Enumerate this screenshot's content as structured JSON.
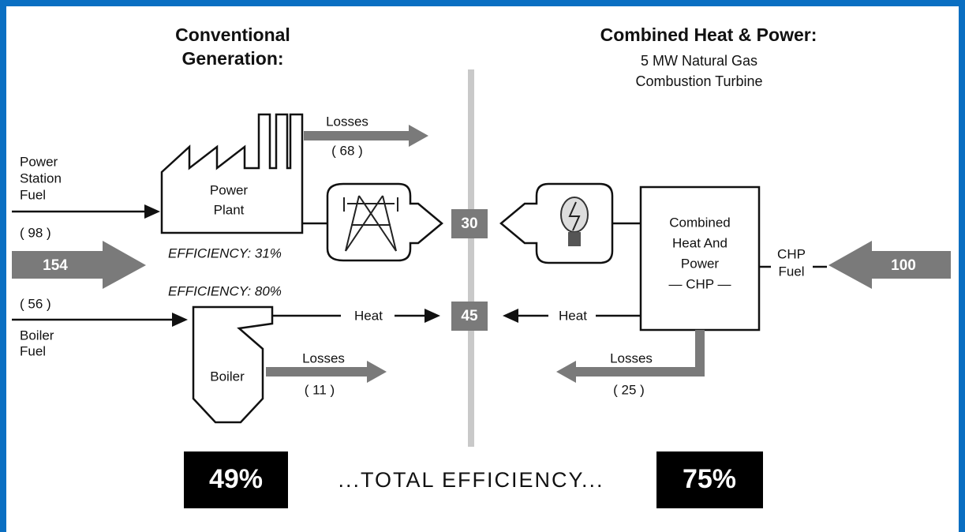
{
  "left_header": {
    "line1": "Conventional",
    "line2": "Generation:"
  },
  "right_header": {
    "title": "Combined Heat & Power:",
    "subtitle": [
      "5 MW Natural Gas",
      "Combustion Turbine"
    ]
  },
  "conventional": {
    "fuel_label": [
      "Power",
      "Station",
      "Fuel"
    ],
    "fuel_value": "( 98 )",
    "total_fuel": "154",
    "plant_label": [
      "Power",
      "Plant"
    ],
    "plant_losses_label": "Losses",
    "plant_losses_value": "( 68 )",
    "plant_efficiency": "EFFICIENCY: 31%",
    "boiler_efficiency": "EFFICIENCY: 80%",
    "boiler_fuel_value": "( 56 )",
    "boiler_fuel_label": [
      "Boiler",
      "Fuel"
    ],
    "boiler_label": "Boiler",
    "heat_label": "Heat",
    "boiler_losses_label": "Losses",
    "boiler_losses_value": "( 11 )"
  },
  "outputs": {
    "power": "30",
    "heat": "45"
  },
  "chp": {
    "label": [
      "Combined",
      "Heat And",
      "Power",
      "— CHP —"
    ],
    "heat_label": "Heat",
    "fuel_label": [
      "CHP",
      "Fuel"
    ],
    "fuel_value": "100",
    "losses_label": "Losses",
    "losses_value": "( 25 )"
  },
  "footer": {
    "conventional_efficiency": "49%",
    "label": "...TOTAL EFFICIENCY...",
    "chp_efficiency": "75%"
  }
}
